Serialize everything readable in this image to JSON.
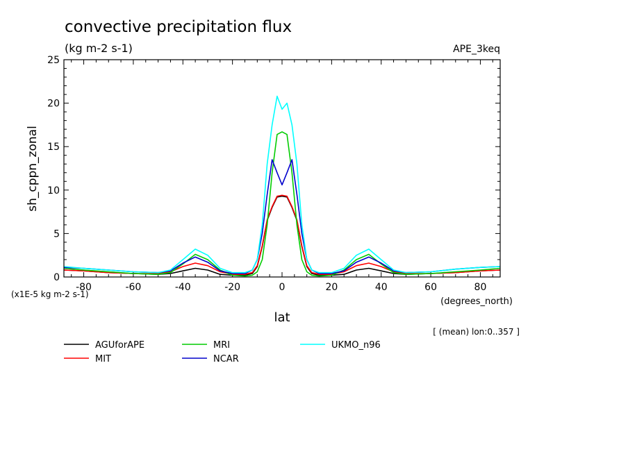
{
  "chart_data": {
    "type": "line",
    "title": "convective precipitation flux",
    "units": "(kg m-2 s-1)",
    "experiment": "APE_3keq",
    "ylabel": "sh_cppn_zonal",
    "xlabel": "lat",
    "x_units": "(degrees_north)",
    "y_scale_note": "(x1E-5 kg m-2 s-1)",
    "footnote": "[ (mean) lon:0..357 ]",
    "xlim": [
      -88,
      88
    ],
    "ylim": [
      0,
      25
    ],
    "x_ticks": [
      -80,
      -60,
      -40,
      -20,
      0,
      20,
      40,
      60,
      80
    ],
    "x_tick_labels": [
      "-80",
      "-60",
      "-40",
      "-20",
      "0",
      "20",
      "40",
      "60",
      "80"
    ],
    "y_ticks": [
      0,
      5,
      10,
      15,
      20,
      25
    ],
    "y_tick_labels": [
      "0",
      "5",
      "10",
      "15",
      "20",
      "25"
    ],
    "x": [
      -88,
      -80,
      -70,
      -60,
      -50,
      -45,
      -40,
      -35,
      -30,
      -25,
      -20,
      -15,
      -12,
      -10,
      -8,
      -6,
      -4,
      -2,
      0,
      2,
      4,
      6,
      8,
      10,
      12,
      15,
      20,
      25,
      30,
      35,
      40,
      45,
      50,
      60,
      70,
      80,
      88
    ],
    "series": [
      {
        "name": "AGUforAPE",
        "color": "#000000",
        "values": [
          0.8,
          0.7,
          0.5,
          0.4,
          0.3,
          0.4,
          0.7,
          1.0,
          0.8,
          0.3,
          0.2,
          0.2,
          0.4,
          1.2,
          3.5,
          6.5,
          8.0,
          9.2,
          9.3,
          9.2,
          8.0,
          6.5,
          3.5,
          1.2,
          0.4,
          0.2,
          0.2,
          0.3,
          0.8,
          1.0,
          0.7,
          0.4,
          0.3,
          0.4,
          0.5,
          0.7,
          0.8
        ]
      },
      {
        "name": "MIT",
        "color": "#ff0000",
        "values": [
          0.8,
          0.7,
          0.5,
          0.4,
          0.4,
          0.6,
          1.2,
          1.6,
          1.3,
          0.6,
          0.3,
          0.3,
          0.5,
          1.3,
          3.6,
          6.6,
          8.1,
          9.3,
          9.4,
          9.3,
          8.1,
          6.6,
          3.6,
          1.3,
          0.5,
          0.3,
          0.3,
          0.6,
          1.3,
          1.6,
          1.2,
          0.6,
          0.4,
          0.4,
          0.5,
          0.7,
          0.8
        ]
      },
      {
        "name": "MRI",
        "color": "#00cc00",
        "values": [
          1.0,
          0.8,
          0.6,
          0.4,
          0.3,
          0.5,
          1.5,
          2.6,
          2.0,
          0.8,
          0.2,
          0.1,
          0.2,
          0.6,
          2.0,
          6.0,
          12.0,
          16.4,
          16.7,
          16.4,
          12.0,
          6.0,
          2.0,
          0.6,
          0.2,
          0.1,
          0.2,
          0.8,
          2.0,
          2.6,
          1.5,
          0.5,
          0.3,
          0.4,
          0.6,
          0.8,
          1.0
        ]
      },
      {
        "name": "NCAR",
        "color": "#0000cc",
        "values": [
          1.1,
          1.0,
          0.8,
          0.6,
          0.5,
          0.7,
          1.6,
          2.3,
          1.7,
          0.7,
          0.4,
          0.4,
          0.8,
          2.0,
          5.0,
          9.5,
          13.5,
          12.0,
          10.6,
          12.0,
          13.5,
          9.5,
          5.0,
          2.0,
          0.8,
          0.4,
          0.4,
          0.7,
          1.7,
          2.3,
          1.6,
          0.7,
          0.5,
          0.6,
          0.9,
          1.1,
          1.2
        ]
      },
      {
        "name": "UKMO_n96",
        "color": "#00ffff",
        "values": [
          1.2,
          1.0,
          0.8,
          0.6,
          0.5,
          0.8,
          2.0,
          3.2,
          2.5,
          1.0,
          0.5,
          0.5,
          0.8,
          2.0,
          6.0,
          13.0,
          17.5,
          20.8,
          19.3,
          20.0,
          17.5,
          13.0,
          6.0,
          2.0,
          0.8,
          0.5,
          0.5,
          1.0,
          2.5,
          3.2,
          2.0,
          0.8,
          0.5,
          0.6,
          0.9,
          1.1,
          1.2
        ]
      }
    ],
    "legend": "below-plot",
    "grid": false
  }
}
